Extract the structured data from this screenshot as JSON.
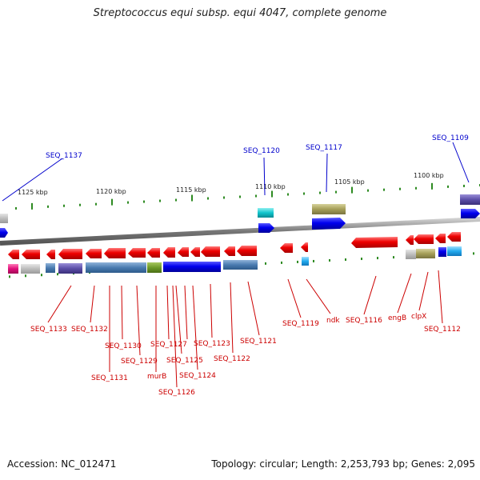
{
  "title": "Streptococcus equi subsp. equi 4047, complete genome",
  "footer": {
    "accession": "Accession: NC_012471",
    "summary": "Topology: circular; Length: 2,253,793 bp; Genes: 2,095"
  },
  "scale_labels": [
    "1125 kbp",
    "1120 kbp",
    "1115 kbp",
    "1110 kbp",
    "1105 kbp",
    "1100 kbp"
  ],
  "top_labels": [
    "SEQ_1137",
    "SEQ_1120",
    "SEQ_1117",
    "SEQ_1109"
  ],
  "bottom_labels": [
    "SEQ_1133",
    "SEQ_1132",
    "SEQ_1131",
    "SEQ_1130",
    "SEQ_1129",
    "murB",
    "SEQ_1127",
    "SEQ_1126",
    "SEQ_1125",
    "SEQ_1124",
    "SEQ_1123",
    "SEQ_1122",
    "SEQ_1121",
    "SEQ_1119",
    "ndk",
    "SEQ_1116",
    "engB",
    "clpX",
    "SEQ_1112"
  ],
  "colors": {
    "top_label": "#0000cc",
    "bottom_label": "#cc0000",
    "forward_gene": "#0000ee",
    "reverse_gene": "#ee0000",
    "backbone": "#777777",
    "tick": "#2e8b22"
  }
}
